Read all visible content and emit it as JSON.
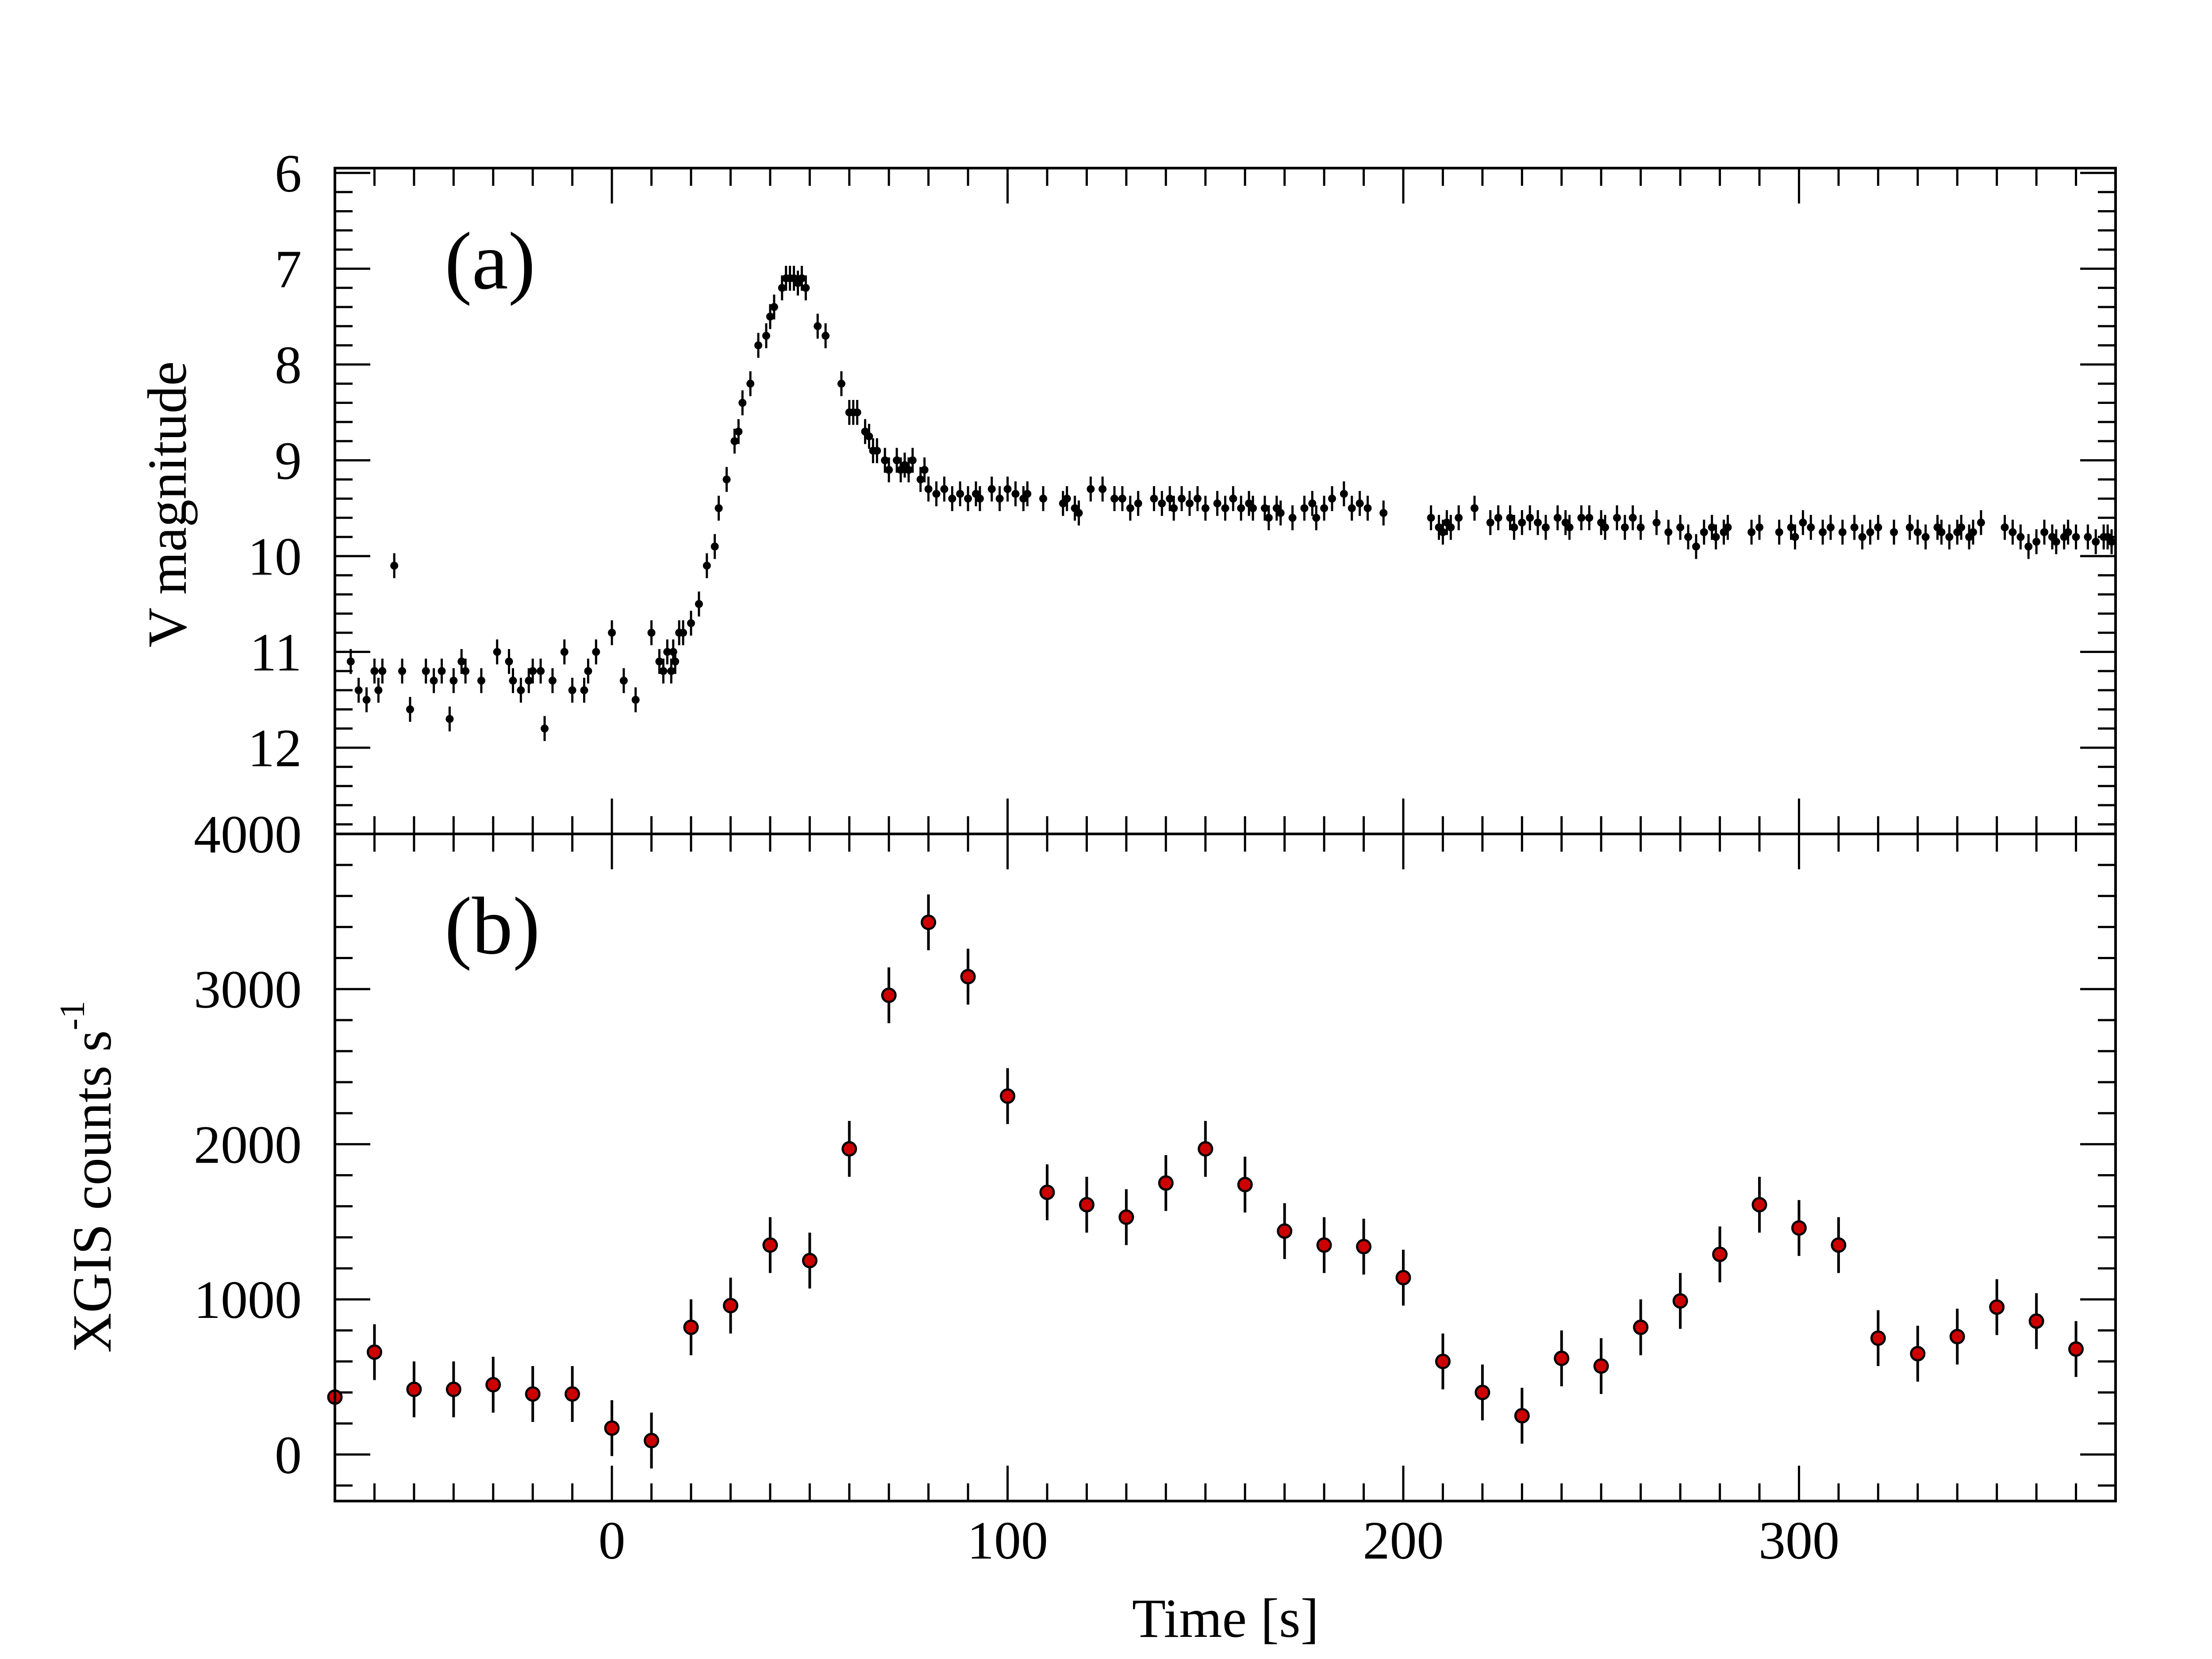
{
  "chart_data": [
    {
      "type": "scatter",
      "panel_label": "(a)",
      "ylabel": "V magnitude",
      "xlabel": "",
      "xlim": [
        -70,
        380
      ],
      "ylim": [
        12.9,
        5.95
      ],
      "y_inverted": true,
      "yticks": [
        "6",
        "7",
        "8",
        "9",
        "10",
        "11",
        "12"
      ],
      "yticks_values": [
        6,
        7,
        8,
        9,
        10,
        11,
        12
      ],
      "series": [
        {
          "name": "V magnitude",
          "marker_color": "#000000",
          "error": 0.13,
          "points": [
            [
              -66,
              11.1
            ],
            [
              -64,
              11.4
            ],
            [
              -62,
              11.5
            ],
            [
              -60,
              11.2
            ],
            [
              -59,
              11.4
            ],
            [
              -58,
              11.2
            ],
            [
              -53,
              11.2
            ],
            [
              -51,
              11.6
            ],
            [
              -47,
              11.2
            ],
            [
              -45,
              11.3
            ],
            [
              -43,
              11.2
            ],
            [
              -41,
              11.7
            ],
            [
              -40,
              11.3
            ],
            [
              -38,
              11.1
            ],
            [
              -37,
              11.2
            ],
            [
              -33,
              11.3
            ],
            [
              -29,
              11.0
            ],
            [
              -26,
              11.1
            ],
            [
              -25,
              11.3
            ],
            [
              -23,
              11.4
            ],
            [
              -21,
              11.3
            ],
            [
              -20,
              11.2
            ],
            [
              -18,
              11.2
            ],
            [
              -17,
              11.8
            ],
            [
              -15,
              11.3
            ],
            [
              -12,
              11.0
            ],
            [
              -10,
              11.4
            ],
            [
              -7,
              11.4
            ],
            [
              -6,
              11.2
            ],
            [
              -4,
              11.0
            ],
            [
              0,
              10.8
            ],
            [
              3,
              11.3
            ],
            [
              6,
              11.5
            ],
            [
              10,
              10.8
            ],
            [
              12,
              11.1
            ],
            [
              13,
              11.2
            ],
            [
              14,
              11.0
            ],
            [
              15,
              11.2
            ],
            [
              15.5,
              11.0
            ],
            [
              16,
              11.1
            ],
            [
              17,
              10.8
            ],
            [
              18,
              10.8
            ],
            [
              20,
              10.7
            ],
            [
              22,
              10.5
            ],
            [
              24,
              10.1
            ],
            [
              26,
              9.9
            ],
            [
              27,
              9.5
            ],
            [
              29,
              9.2
            ],
            [
              31,
              8.8
            ],
            [
              32,
              8.7
            ],
            [
              33,
              8.4
            ],
            [
              35,
              8.2
            ],
            [
              37,
              7.8
            ],
            [
              39,
              7.7
            ],
            [
              40,
              7.5
            ],
            [
              41,
              7.4
            ],
            [
              43,
              7.2
            ],
            [
              44,
              7.1
            ],
            [
              45,
              7.1
            ],
            [
              46,
              7.1
            ],
            [
              47,
              7.15
            ],
            [
              48,
              7.1
            ],
            [
              49,
              7.2
            ],
            [
              52,
              7.6
            ],
            [
              54,
              7.7
            ],
            [
              58,
              8.2
            ],
            [
              60,
              8.5
            ],
            [
              61,
              8.5
            ],
            [
              62,
              8.5
            ],
            [
              64,
              8.7
            ],
            [
              65,
              8.75
            ],
            [
              66,
              8.9
            ],
            [
              67,
              8.9
            ],
            [
              69,
              9.0
            ],
            [
              70,
              9.1
            ],
            [
              72,
              9.0
            ],
            [
              73,
              9.1
            ],
            [
              74,
              9.05
            ],
            [
              75,
              9.1
            ],
            [
              76,
              9.0
            ],
            [
              78,
              9.2
            ],
            [
              79,
              9.1
            ],
            [
              80,
              9.3
            ],
            [
              82,
              9.35
            ],
            [
              84,
              9.3
            ],
            [
              86,
              9.4
            ],
            [
              88,
              9.35
            ],
            [
              90,
              9.4
            ],
            [
              92,
              9.35
            ],
            [
              93,
              9.4
            ],
            [
              96,
              9.3
            ],
            [
              98,
              9.4
            ],
            [
              100,
              9.3
            ],
            [
              102,
              9.35
            ],
            [
              104,
              9.4
            ],
            [
              105,
              9.35
            ],
            [
              109,
              9.4
            ],
            [
              114,
              9.45
            ],
            [
              115,
              9.4
            ],
            [
              117,
              9.5
            ],
            [
              118,
              9.55
            ],
            [
              121,
              9.3
            ],
            [
              124,
              9.3
            ],
            [
              127,
              9.4
            ],
            [
              129,
              9.4
            ],
            [
              131,
              9.5
            ],
            [
              133,
              9.45
            ],
            [
              137,
              9.4
            ],
            [
              139,
              9.45
            ],
            [
              141,
              9.4
            ],
            [
              142,
              9.5
            ],
            [
              144,
              9.4
            ],
            [
              146,
              9.45
            ],
            [
              148,
              9.4
            ],
            [
              150,
              9.5
            ],
            [
              153,
              9.45
            ],
            [
              155,
              9.5
            ],
            [
              157,
              9.4
            ],
            [
              159,
              9.5
            ],
            [
              161,
              9.45
            ],
            [
              162,
              9.5
            ],
            [
              165,
              9.5
            ],
            [
              166,
              9.6
            ],
            [
              168,
              9.5
            ],
            [
              169,
              9.55
            ],
            [
              172,
              9.6
            ],
            [
              175,
              9.5
            ],
            [
              177,
              9.45
            ],
            [
              178,
              9.6
            ],
            [
              180,
              9.5
            ],
            [
              182,
              9.4
            ],
            [
              185,
              9.35
            ],
            [
              187,
              9.5
            ],
            [
              189,
              9.45
            ],
            [
              191,
              9.5
            ],
            [
              195,
              9.55
            ],
            [
              207,
              9.6
            ],
            [
              209,
              9.7
            ],
            [
              210,
              9.75
            ],
            [
              211,
              9.65
            ],
            [
              212,
              9.7
            ],
            [
              214,
              9.6
            ],
            [
              218,
              9.5
            ],
            [
              222,
              9.65
            ],
            [
              224,
              9.6
            ],
            [
              227,
              9.6
            ],
            [
              228,
              9.7
            ],
            [
              230,
              9.65
            ],
            [
              232,
              9.6
            ],
            [
              234,
              9.65
            ],
            [
              236,
              9.7
            ],
            [
              239,
              9.6
            ],
            [
              241,
              9.65
            ],
            [
              242,
              9.7
            ],
            [
              245,
              9.6
            ],
            [
              247,
              9.6
            ],
            [
              250,
              9.65
            ],
            [
              251,
              9.7
            ],
            [
              254,
              9.6
            ],
            [
              256,
              9.7
            ],
            [
              258,
              9.6
            ],
            [
              260,
              9.7
            ],
            [
              264,
              9.65
            ],
            [
              267,
              9.75
            ],
            [
              270,
              9.7
            ],
            [
              272,
              9.8
            ],
            [
              274,
              9.9
            ],
            [
              276,
              9.75
            ],
            [
              278,
              9.7
            ],
            [
              279,
              9.8
            ],
            [
              281,
              9.75
            ],
            [
              282,
              9.7
            ],
            [
              288,
              9.75
            ],
            [
              290,
              9.7
            ],
            [
              295,
              9.75
            ],
            [
              298,
              9.7
            ],
            [
              299,
              9.8
            ],
            [
              301,
              9.65
            ],
            [
              303,
              9.7
            ],
            [
              306,
              9.75
            ],
            [
              308,
              9.7
            ],
            [
              311,
              9.75
            ],
            [
              314,
              9.7
            ],
            [
              316,
              9.8
            ],
            [
              318,
              9.75
            ],
            [
              320,
              9.7
            ],
            [
              324,
              9.75
            ],
            [
              328,
              9.7
            ],
            [
              330,
              9.75
            ],
            [
              332,
              9.8
            ],
            [
              335,
              9.7
            ],
            [
              336,
              9.75
            ],
            [
              338,
              9.8
            ],
            [
              340,
              9.75
            ],
            [
              341,
              9.7
            ],
            [
              343,
              9.8
            ],
            [
              344,
              9.75
            ],
            [
              346,
              9.65
            ],
            [
              352,
              9.7
            ],
            [
              354,
              9.75
            ],
            [
              356,
              9.8
            ],
            [
              358,
              9.9
            ],
            [
              360,
              9.85
            ],
            [
              362,
              9.75
            ],
            [
              364,
              9.8
            ],
            [
              365,
              9.85
            ],
            [
              367,
              9.8
            ],
            [
              368,
              9.75
            ],
            [
              370,
              9.8
            ],
            [
              373,
              9.8
            ],
            [
              375,
              9.85
            ],
            [
              377,
              9.8
            ],
            [
              378,
              9.8
            ],
            [
              379,
              9.85
            ],
            [
              -55,
              10.1
            ]
          ]
        }
      ]
    },
    {
      "type": "scatter",
      "panel_label": "(b)",
      "ylabel": "XGIS counts s",
      "ylabel_superscript": "-1",
      "xlabel": "Time [s]",
      "xlim": [
        -70,
        380
      ],
      "ylim": [
        -300,
        4000
      ],
      "xticks": [
        "0",
        "100",
        "200",
        "300"
      ],
      "xticks_values": [
        0,
        100,
        200,
        300
      ],
      "yticks": [
        "0",
        "1000",
        "2000",
        "3000",
        "4000"
      ],
      "yticks_values": [
        0,
        1000,
        2000,
        3000,
        4000
      ],
      "series": [
        {
          "name": "XGIS counts",
          "marker_color": "#cc0000",
          "error": 180,
          "points": [
            [
              -70,
              370
            ],
            [
              -60,
              660
            ],
            [
              -50,
              420
            ],
            [
              -40,
              420
            ],
            [
              -30,
              450
            ],
            [
              -20,
              390
            ],
            [
              -10,
              390
            ],
            [
              0,
              170
            ],
            [
              10,
              90
            ],
            [
              20,
              820
            ],
            [
              30,
              960
            ],
            [
              40,
              1350
            ],
            [
              50,
              1250
            ],
            [
              60,
              1970
            ],
            [
              70,
              2960
            ],
            [
              80,
              3430
            ],
            [
              90,
              3080
            ],
            [
              100,
              2310
            ],
            [
              110,
              1690
            ],
            [
              120,
              1610
            ],
            [
              130,
              1530
            ],
            [
              140,
              1750
            ],
            [
              150,
              1970
            ],
            [
              160,
              1740
            ],
            [
              170,
              1440
            ],
            [
              180,
              1350
            ],
            [
              190,
              1340
            ],
            [
              200,
              1140
            ],
            [
              210,
              600
            ],
            [
              220,
              400
            ],
            [
              230,
              250
            ],
            [
              240,
              620
            ],
            [
              250,
              570
            ],
            [
              260,
              820
            ],
            [
              270,
              990
            ],
            [
              280,
              1290
            ],
            [
              290,
              1610
            ],
            [
              300,
              1460
            ],
            [
              310,
              1350
            ],
            [
              320,
              750
            ],
            [
              330,
              650
            ],
            [
              340,
              760
            ],
            [
              350,
              950
            ],
            [
              360,
              860
            ],
            [
              370,
              680
            ]
          ]
        }
      ]
    }
  ]
}
